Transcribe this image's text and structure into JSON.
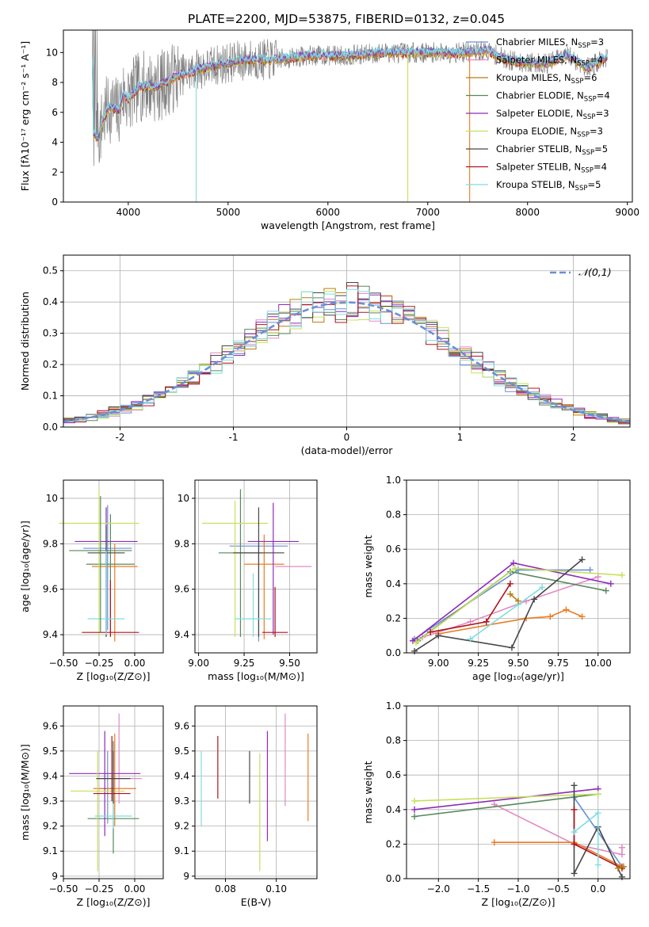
{
  "figure_title": "PLATE=2200, MJD=53875, FIBERID=0132, z=0.045",
  "palette": [
    "#6a8fd8",
    "#e289c4",
    "#b87d12",
    "#58875a",
    "#8e2ab8",
    "#c8e05c",
    "#474747",
    "#b0141c",
    "#80dce0",
    "#808080",
    "#ec7a20"
  ],
  "chart_data": [
    {
      "id": "spectrum",
      "type": "line",
      "title": "PLATE=2200, MJD=53875, FIBERID=0132, z=0.045",
      "xlabel": "wavelength [Angstrom, rest frame]",
      "ylabel": "Flux [fλ10⁻¹⁷ erg cm⁻² s⁻¹ A⁻¹]",
      "xlim": [
        3350,
        9050
      ],
      "ylim": [
        0,
        11.5
      ],
      "xticks": [
        4000,
        5000,
        6000,
        7000,
        8000,
        9000
      ],
      "yticks": [
        0,
        2,
        4,
        6,
        8,
        10
      ],
      "grid": false,
      "legend_position": "upper right",
      "legend": [
        {
          "label": "Chabrier MILES, N",
          "sub": "SSP",
          "val": "=3"
        },
        {
          "label": "Salpeter MILES, N",
          "sub": "SSP",
          "val": "=4"
        },
        {
          "label": "Kroupa MILES, N",
          "sub": "SSP",
          "val": "=6"
        },
        {
          "label": "Chabrier ELODIE, N",
          "sub": "SSP",
          "val": "=4"
        },
        {
          "label": "Salpeter ELODIE, N",
          "sub": "SSP",
          "val": "=3"
        },
        {
          "label": "Kroupa ELODIE, N",
          "sub": "SSP",
          "val": "=3"
        },
        {
          "label": "Chabrier STELIB, N",
          "sub": "SSP",
          "val": "=5"
        },
        {
          "label": "Salpeter STELIB, N",
          "sub": "SSP",
          "val": "=4"
        },
        {
          "label": "Kroupa STELIB, N",
          "sub": "SSP",
          "val": "=5"
        }
      ],
      "continuum_knots": [
        [
          3650,
          4.6
        ],
        [
          3700,
          4.3
        ],
        [
          3750,
          5.6
        ],
        [
          3800,
          6.3
        ],
        [
          3850,
          6.3
        ],
        [
          3900,
          6.0
        ],
        [
          3950,
          7.2
        ],
        [
          4000,
          6.9
        ],
        [
          4100,
          7.7
        ],
        [
          4200,
          7.8
        ],
        [
          4300,
          7.7
        ],
        [
          4400,
          8.1
        ],
        [
          4500,
          8.5
        ],
        [
          4600,
          8.6
        ],
        [
          4700,
          8.9
        ],
        [
          4800,
          9.0
        ],
        [
          4900,
          9.2
        ],
        [
          5000,
          9.3
        ],
        [
          5200,
          9.5
        ],
        [
          5400,
          9.5
        ],
        [
          5600,
          9.6
        ],
        [
          5800,
          9.8
        ],
        [
          6000,
          9.8
        ],
        [
          6200,
          9.8
        ],
        [
          6400,
          9.9
        ],
        [
          6600,
          10.0
        ],
        [
          6800,
          10.0
        ],
        [
          7000,
          10.0
        ],
        [
          7200,
          10.0
        ],
        [
          7400,
          10.0
        ],
        [
          7600,
          10.1
        ],
        [
          7800,
          9.5
        ],
        [
          8000,
          9.3
        ],
        [
          8200,
          9.3
        ],
        [
          8400,
          9.8
        ],
        [
          8600,
          9.0
        ],
        [
          8800,
          9.7
        ]
      ],
      "drops": [
        {
          "x": 4680,
          "series": 8
        },
        {
          "x": 6800,
          "series": 5
        },
        {
          "x": 7420,
          "series": 10
        }
      ]
    },
    {
      "id": "residuals",
      "type": "histogram",
      "xlabel": "(data-model)/error",
      "ylabel": "Normed distribution",
      "xlim": [
        -2.5,
        2.5
      ],
      "ylim": [
        0,
        0.55
      ],
      "xticks": [
        -2,
        -1,
        0,
        1,
        2
      ],
      "yticks": [
        0.0,
        0.1,
        0.2,
        0.3,
        0.4,
        0.5
      ],
      "grid": true,
      "bin_width": 0.1,
      "legend_position": "upper right",
      "reference_label": "𝒩(0,1)",
      "series_count": 9
    },
    {
      "id": "age-vs-Z",
      "type": "errorbar",
      "xlabel": "Z [log₁₀(Z/Z⊙)]",
      "ylabel": "age  [log₁₀(age/yr)]",
      "xlim": [
        -0.5,
        0.2
      ],
      "ylim": [
        9.32,
        10.08
      ],
      "xticks": [
        -0.5,
        -0.25,
        0.0
      ],
      "xticklabels": [
        "−0.50",
        "−0.25",
        "0.00"
      ],
      "yticks": [
        9.4,
        9.6,
        9.8,
        10.0
      ],
      "grid": true,
      "points": [
        {
          "x": -0.19,
          "y": 9.78,
          "xerr": 0.17,
          "yerr": [
            0.36,
            0.19
          ],
          "color": 0
        },
        {
          "x": -0.14,
          "y": 9.7,
          "xerr": 0.16,
          "yerr": [
            0.33,
            0.1
          ],
          "color": 10
        },
        {
          "x": -0.17,
          "y": 9.71,
          "xerr": 0.17,
          "yerr": [
            0.3,
            0.22
          ],
          "color": 3
        },
        {
          "x": -0.2,
          "y": 9.81,
          "xerr": 0.22,
          "yerr": [
            0.4,
            0.15
          ],
          "color": 4
        },
        {
          "x": -0.25,
          "y": 9.89,
          "xerr": 0.28,
          "yerr": [
            0.5,
            0.15
          ],
          "color": 5
        },
        {
          "x": -0.2,
          "y": 9.76,
          "xerr": 0.13,
          "yerr": [
            0.37,
            0.12
          ],
          "color": 6
        },
        {
          "x": -0.17,
          "y": 9.41,
          "xerr": 0.2,
          "yerr": [
            0.02,
            0.23
          ],
          "color": 7
        },
        {
          "x": -0.2,
          "y": 9.47,
          "xerr": 0.13,
          "yerr": [
            0.07,
            0.3
          ],
          "color": 8
        },
        {
          "x": -0.24,
          "y": 9.77,
          "xerr": 0.22,
          "yerr": [
            0.36,
            0.24
          ],
          "color": 3
        }
      ]
    },
    {
      "id": "age-vs-mass",
      "type": "errorbar",
      "xlabel": "mass [log₁₀(M/M⊙)]",
      "ylabel": "",
      "xlim": [
        8.98,
        9.65
      ],
      "ylim": [
        9.32,
        10.08
      ],
      "xticks": [
        9.0,
        9.25,
        9.5
      ],
      "xticklabels": [
        "9.00",
        "9.25",
        "9.50"
      ],
      "yticks": [
        9.4,
        9.6,
        9.8,
        10.0
      ],
      "grid": true,
      "points": [
        {
          "x": 9.33,
          "y": 9.79,
          "xerr": 0.16,
          "yerr": [
            0.42,
            0.0
          ],
          "color": 0
        },
        {
          "x": 9.52,
          "y": 9.7,
          "xerr": 0.1,
          "yerr": [
            0.0,
            0.0
          ],
          "color": 1
        },
        {
          "x": 9.36,
          "y": 9.71,
          "xerr": 0.11,
          "yerr": [
            0.33,
            0.13
          ],
          "color": 10
        },
        {
          "x": 9.23,
          "y": 9.76,
          "xerr": 0.12,
          "yerr": [
            0.37,
            0.28
          ],
          "color": 3
        },
        {
          "x": 9.41,
          "y": 9.81,
          "xerr": 0.14,
          "yerr": [
            0.41,
            0.17
          ],
          "color": 4
        },
        {
          "x": 9.2,
          "y": 9.89,
          "xerr": 0.18,
          "yerr": [
            0.5,
            0.1
          ],
          "color": 5
        },
        {
          "x": 9.33,
          "y": 9.76,
          "xerr": 0.14,
          "yerr": [
            0.37,
            0.2
          ],
          "color": 6
        },
        {
          "x": 9.42,
          "y": 9.41,
          "xerr": 0.07,
          "yerr": [
            0.02,
            0.2
          ],
          "color": 7
        },
        {
          "x": 9.3,
          "y": 9.47,
          "xerr": 0.1,
          "yerr": [
            0.08,
            0.2
          ],
          "color": 8
        }
      ]
    },
    {
      "id": "weight-vs-age",
      "type": "line",
      "xlabel": "age  [log₁₀(age/yr)]",
      "ylabel": "mass weight",
      "xlim": [
        8.8,
        10.2
      ],
      "ylim": [
        0,
        1
      ],
      "xticks": [
        9.0,
        9.25,
        9.5,
        9.75,
        10.0
      ],
      "xticklabels": [
        "9.00",
        "9.25",
        "9.50",
        "9.75",
        "10.00"
      ],
      "yticks": [
        0.0,
        0.2,
        0.4,
        0.6,
        0.8,
        1.0
      ],
      "grid": true,
      "series": [
        {
          "color": 0,
          "points": [
            [
              8.85,
              0.08
            ],
            [
              9.5,
              0.48
            ],
            [
              9.95,
              0.48
            ]
          ]
        },
        {
          "color": 1,
          "points": [
            [
              8.9,
              0.09
            ],
            [
              9.2,
              0.18
            ],
            [
              9.55,
              0.3
            ],
            [
              10.0,
              0.44
            ]
          ]
        },
        {
          "color": 10,
          "points": [
            [
              9.0,
              0.11
            ],
            [
              9.55,
              0.2
            ],
            [
              9.7,
              0.21
            ],
            [
              9.8,
              0.25
            ],
            [
              9.9,
              0.21
            ]
          ]
        },
        {
          "color": 3,
          "points": [
            [
              8.87,
              0.07
            ],
            [
              9.45,
              0.47
            ],
            [
              10.05,
              0.36
            ]
          ]
        },
        {
          "color": 4,
          "points": [
            [
              8.84,
              0.07
            ],
            [
              9.47,
              0.52
            ],
            [
              10.08,
              0.4
            ]
          ]
        },
        {
          "color": 5,
          "points": [
            [
              8.86,
              0.06
            ],
            [
              9.48,
              0.49
            ],
            [
              10.15,
              0.45
            ]
          ]
        },
        {
          "color": 6,
          "points": [
            [
              8.85,
              0.01
            ],
            [
              9.0,
              0.1
            ],
            [
              9.46,
              0.03
            ],
            [
              9.6,
              0.31
            ],
            [
              9.9,
              0.54
            ]
          ]
        },
        {
          "color": 7,
          "points": [
            [
              8.95,
              0.12
            ],
            [
              9.3,
              0.18
            ],
            [
              9.45,
              0.4
            ]
          ]
        },
        {
          "color": 8,
          "points": [
            [
              9.2,
              0.08
            ],
            [
              9.5,
              0.28
            ],
            [
              9.65,
              0.38
            ]
          ]
        },
        {
          "color": 2,
          "points": [
            [
              9.45,
              0.34
            ],
            [
              9.5,
              0.3
            ]
          ]
        }
      ]
    },
    {
      "id": "mass-vs-Z",
      "type": "errorbar",
      "xlabel": "Z [log₁₀(Z/Z⊙)]",
      "ylabel": "mass [log₁₀(M/M⊙)]",
      "xlim": [
        -0.5,
        0.2
      ],
      "ylim": [
        8.99,
        9.68
      ],
      "xticks": [
        -0.5,
        -0.25,
        0.0
      ],
      "xticklabels": [
        "−0.50",
        "−0.25",
        "0.00"
      ],
      "yticks": [
        9.0,
        9.1,
        9.2,
        9.3,
        9.4,
        9.5,
        9.6
      ],
      "grid": true,
      "points": [
        {
          "x": -0.19,
          "y": 9.35,
          "xerr": 0.05,
          "yerr": [
            0.14,
            0.15
          ],
          "color": 0
        },
        {
          "x": -0.11,
          "y": 9.39,
          "xerr": 0.16,
          "yerr": [
            0.1,
            0.26
          ],
          "color": 1
        },
        {
          "x": -0.14,
          "y": 9.35,
          "xerr": 0.15,
          "yerr": [
            0.15,
            0.22
          ],
          "color": 10
        },
        {
          "x": -0.15,
          "y": 9.23,
          "xerr": 0.18,
          "yerr": [
            0.14,
            0.31
          ],
          "color": 3
        },
        {
          "x": -0.21,
          "y": 9.41,
          "xerr": 0.25,
          "yerr": [
            0.25,
            0.17
          ],
          "color": 4
        },
        {
          "x": -0.26,
          "y": 9.34,
          "xerr": 0.19,
          "yerr": [
            0.32,
            0.16
          ],
          "color": 5
        },
        {
          "x": -0.15,
          "y": 9.39,
          "xerr": 0.12,
          "yerr": [
            0.1,
            0.11
          ],
          "color": 6
        },
        {
          "x": -0.16,
          "y": 9.33,
          "xerr": 0.13,
          "yerr": [
            0.03,
            0.23
          ],
          "color": 7
        },
        {
          "x": -0.15,
          "y": 9.24,
          "xerr": 0.13,
          "yerr": [
            0.05,
            0.05
          ],
          "color": 8
        }
      ]
    },
    {
      "id": "mass-vs-EBV",
      "type": "errorbar",
      "xlabel": "E(B-V)",
      "ylabel": "",
      "xlim": [
        0.068,
        0.116
      ],
      "ylim": [
        8.99,
        9.68
      ],
      "xticks": [
        0.08,
        0.1
      ],
      "xticklabels": [
        "0.08",
        "0.10"
      ],
      "yticks": [
        9.0,
        9.1,
        9.2,
        9.3,
        9.4,
        9.5,
        9.6
      ],
      "grid": true,
      "points": [
        {
          "x": 0.0965,
          "y": 9.46,
          "xerr": 0,
          "yerr": [
            0.32,
            0.12
          ],
          "color": 4
        },
        {
          "x": 0.0935,
          "y": 9.3,
          "xerr": 0,
          "yerr": [
            0.28,
            0.19
          ],
          "color": 5
        },
        {
          "x": 0.1035,
          "y": 9.46,
          "xerr": 0,
          "yerr": [
            0.18,
            0.19
          ],
          "color": 1
        },
        {
          "x": 0.0895,
          "y": 9.4,
          "xerr": 0,
          "yerr": [
            0.11,
            0.1
          ],
          "color": 6
        },
        {
          "x": 0.077,
          "y": 9.43,
          "xerr": 0,
          "yerr": [
            0.12,
            0.13
          ],
          "color": 7
        },
        {
          "x": 0.0705,
          "y": 9.35,
          "xerr": 0,
          "yerr": [
            0.15,
            0.15
          ],
          "color": 8
        },
        {
          "x": 0.1125,
          "y": 9.39,
          "xerr": 0,
          "yerr": [
            0.17,
            0.18
          ],
          "color": 10
        }
      ]
    },
    {
      "id": "weight-vs-Z",
      "type": "line",
      "xlabel": "Z [log₁₀(Z/Z⊙)]",
      "ylabel": "mass weight",
      "xlim": [
        -2.4,
        0.4
      ],
      "ylim": [
        0,
        1
      ],
      "xticks": [
        -2.0,
        -1.5,
        -1.0,
        -0.5,
        0.0
      ],
      "xticklabels": [
        "−2.0",
        "−1.5",
        "−1.0",
        "−0.5",
        "0.0"
      ],
      "yticks": [
        0.0,
        0.2,
        0.4,
        0.6,
        0.8,
        1.0
      ],
      "grid": true,
      "series": [
        {
          "color": 0,
          "points": [
            [
              -0.3,
              0.47
            ],
            [
              0.3,
              0.07
            ]
          ]
        },
        {
          "color": 1,
          "points": [
            [
              -1.3,
              0.43
            ],
            [
              -0.3,
              0.2
            ],
            [
              0.3,
              0.14
            ],
            [
              0.3,
              0.18
            ]
          ]
        },
        {
          "color": 10,
          "points": [
            [
              -1.3,
              0.21
            ],
            [
              -0.3,
              0.21
            ],
            [
              0.3,
              0.07
            ]
          ]
        },
        {
          "color": 3,
          "points": [
            [
              -2.3,
              0.36
            ],
            [
              0.0,
              0.49
            ]
          ]
        },
        {
          "color": 4,
          "points": [
            [
              -2.3,
              0.4
            ],
            [
              0.0,
              0.52
            ]
          ]
        },
        {
          "color": 5,
          "points": [
            [
              -2.3,
              0.45
            ],
            [
              0.0,
              0.49
            ]
          ]
        },
        {
          "color": 6,
          "points": [
            [
              -0.3,
              0.54
            ],
            [
              -0.3,
              0.03
            ],
            [
              0.0,
              0.3
            ],
            [
              0.3,
              0.01
            ]
          ]
        },
        {
          "color": 7,
          "points": [
            [
              -0.3,
              0.4
            ],
            [
              -0.3,
              0.2
            ],
            [
              0.3,
              0.06
            ]
          ]
        },
        {
          "color": 8,
          "points": [
            [
              -0.3,
              0.27
            ],
            [
              0.0,
              0.38
            ],
            [
              0.0,
              0.08
            ]
          ]
        },
        {
          "color": 2,
          "points": [
            [
              0.25,
              0.06
            ],
            [
              0.32,
              0.07
            ]
          ]
        }
      ]
    }
  ]
}
